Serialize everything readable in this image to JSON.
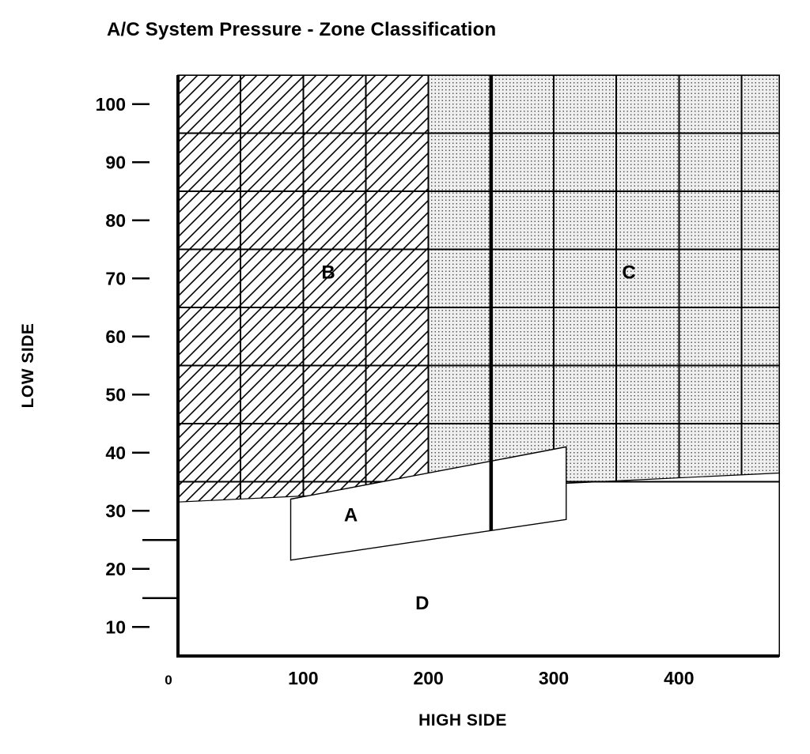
{
  "title": "A/C System Pressure - Zone Classification",
  "chart_data": {
    "type": "area",
    "title": "A/C System Pressure - Zone Classification",
    "xlabel": "HIGH SIDE",
    "ylabel": "LOW SIDE",
    "xlim": [
      0,
      480
    ],
    "ylim": [
      5,
      105
    ],
    "grid": true,
    "legend": "none",
    "x_ticks": [
      {
        "value": 0,
        "label": "0",
        "small": true,
        "dx": -12
      },
      {
        "value": 100,
        "label": "100"
      },
      {
        "value": 200,
        "label": "200"
      },
      {
        "value": 300,
        "label": "300"
      },
      {
        "value": 400,
        "label": "400"
      }
    ],
    "y_ticks": [
      10,
      20,
      30,
      40,
      50,
      60,
      70,
      80,
      90,
      100
    ],
    "h_gridlines": [
      35,
      45,
      55,
      65,
      75,
      85,
      95
    ],
    "h_stub_lines": [
      15,
      25
    ],
    "v_gridlines": [
      50,
      100,
      150,
      200,
      300,
      350,
      400,
      450
    ],
    "thick_vline": {
      "x": 250,
      "y_top": 105,
      "y_bottom": 26.6
    },
    "boundary_line": {
      "x1": 0,
      "y1": 31.5,
      "x2": 480,
      "y2": 36.5
    },
    "zones": [
      {
        "name": "B",
        "label": "B",
        "pattern": "hatch",
        "polygon": [
          [
            0,
            31.5
          ],
          [
            200,
            33.58
          ],
          [
            200,
            105
          ],
          [
            0,
            105
          ]
        ],
        "label_pos": [
          120,
          70
        ]
      },
      {
        "name": "C",
        "label": "C",
        "pattern": "dots",
        "polygon": [
          [
            200,
            33.58
          ],
          [
            480,
            36.5
          ],
          [
            480,
            105
          ],
          [
            200,
            105
          ]
        ],
        "label_pos": [
          360,
          70
        ]
      },
      {
        "name": "A",
        "label": "A",
        "pattern": "white",
        "polygon": [
          [
            90,
            32
          ],
          [
            310,
            41
          ],
          [
            310,
            28.5
          ],
          [
            90,
            21.5
          ]
        ],
        "label_pos": [
          138,
          28.2
        ]
      },
      {
        "name": "D",
        "label": "D",
        "pattern": "none",
        "label_pos": [
          195,
          13
        ]
      }
    ]
  }
}
